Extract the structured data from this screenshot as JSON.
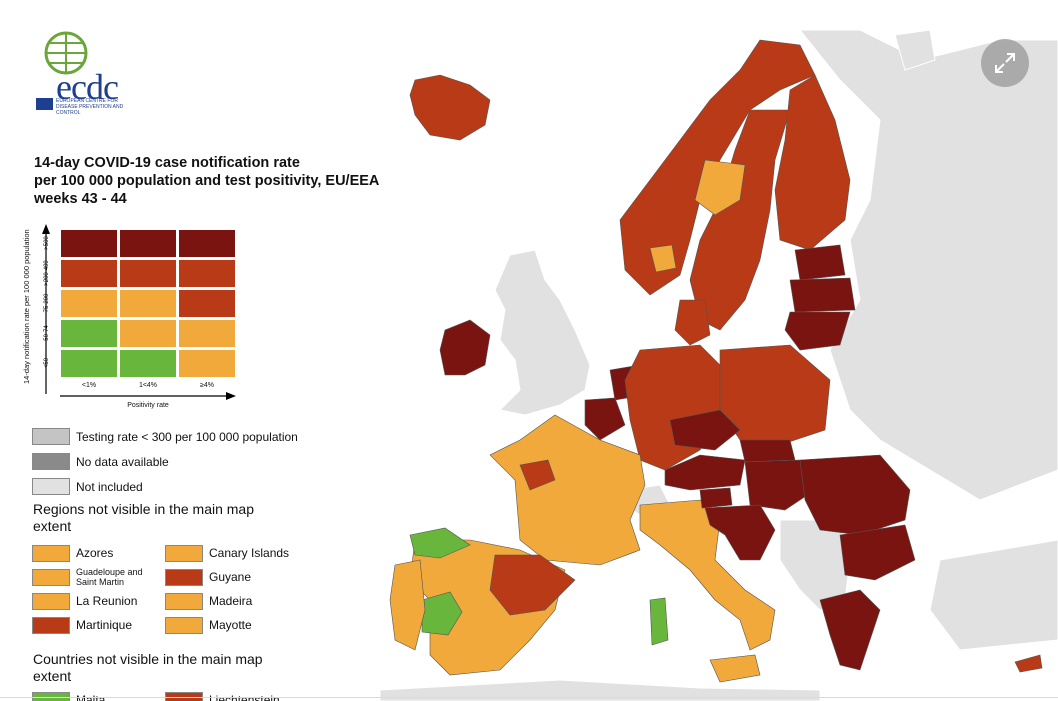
{
  "logo": {
    "wordmark": "ecdc",
    "subtitle": "EUROPEAN CENTRE FOR DISEASE PREVENTION AND CONTROL"
  },
  "title": {
    "line1": "14-day COVID-19 case notification rate",
    "line2": "per 100 000 population and test positivity, EU/EEA",
    "line3": "weeks 43 - 44"
  },
  "colors": {
    "dark_red": "#7a1410",
    "red": "#b83a16",
    "orange": "#f0a93a",
    "green": "#68b73c",
    "grey_testing": "#c4c4c4",
    "grey_nodata": "#8a8a8a",
    "grey_not_included": "#e1e1e1",
    "sea": "#ffffff"
  },
  "matrix": {
    "y_axis_title": "14-day notification rate per 100 000 population",
    "x_axis_title": "Positivity rate",
    "rows": [
      ">500",
      ">200-499",
      "75-200",
      "50-74",
      "<50"
    ],
    "cols": [
      "<1%",
      "1<4%",
      "≥4%"
    ],
    "cells": [
      [
        "dark_red",
        "dark_red",
        "dark_red"
      ],
      [
        "red",
        "red",
        "red"
      ],
      [
        "orange",
        "orange",
        "red"
      ],
      [
        "green",
        "orange",
        "orange"
      ],
      [
        "green",
        "green",
        "orange"
      ]
    ]
  },
  "legend": {
    "testing": "Testing rate < 300 per 100 000 population",
    "nodata": "No data available",
    "not_included": "Not included",
    "regions_head": "Regions not visible in the main map extent",
    "regions": [
      {
        "label": "Azores",
        "color": "orange"
      },
      {
        "label": "Canary Islands",
        "color": "orange"
      },
      {
        "label": "Guadeloupe and Saint Martin",
        "color": "orange"
      },
      {
        "label": "Guyane",
        "color": "red"
      },
      {
        "label": "La Reunion",
        "color": "orange"
      },
      {
        "label": "Madeira",
        "color": "orange"
      },
      {
        "label": "Martinique",
        "color": "red"
      },
      {
        "label": "Mayotte",
        "color": "orange"
      }
    ],
    "countries_head": "Countries not visible in the main map extent",
    "countries": [
      {
        "label": "Malta",
        "color": "green"
      },
      {
        "label": "Liechtenstein",
        "color": "red"
      }
    ]
  },
  "map": {
    "regions": [
      {
        "name": "Iceland",
        "color": "red"
      },
      {
        "name": "Norway",
        "color": "red"
      },
      {
        "name": "Sweden",
        "color": "red"
      },
      {
        "name": "Finland",
        "color": "red"
      },
      {
        "name": "Ireland",
        "color": "dark_red"
      },
      {
        "name": "Estonia",
        "color": "dark_red"
      },
      {
        "name": "Latvia",
        "color": "dark_red"
      },
      {
        "name": "Lithuania",
        "color": "dark_red"
      },
      {
        "name": "Denmark",
        "color": "red"
      },
      {
        "name": "Netherlands",
        "color": "dark_red"
      },
      {
        "name": "Belgium",
        "color": "dark_red"
      },
      {
        "name": "Germany",
        "color": "red"
      },
      {
        "name": "Poland",
        "color": "red"
      },
      {
        "name": "France",
        "color": "orange"
      },
      {
        "name": "Spain",
        "color": "orange"
      },
      {
        "name": "Portugal",
        "color": "orange"
      },
      {
        "name": "Italy",
        "color": "orange"
      },
      {
        "name": "Czechia",
        "color": "dark_red"
      },
      {
        "name": "Austria",
        "color": "dark_red"
      },
      {
        "name": "Slovakia",
        "color": "dark_red"
      },
      {
        "name": "Hungary",
        "color": "dark_red"
      },
      {
        "name": "Slovenia",
        "color": "dark_red"
      },
      {
        "name": "Croatia",
        "color": "dark_red"
      },
      {
        "name": "Romania",
        "color": "dark_red"
      },
      {
        "name": "Bulgaria",
        "color": "dark_red"
      },
      {
        "name": "Greece",
        "color": "dark_red"
      },
      {
        "name": "Cyprus",
        "color": "red"
      }
    ]
  },
  "controls": {
    "expand_icon": "expand-arrows-icon"
  }
}
